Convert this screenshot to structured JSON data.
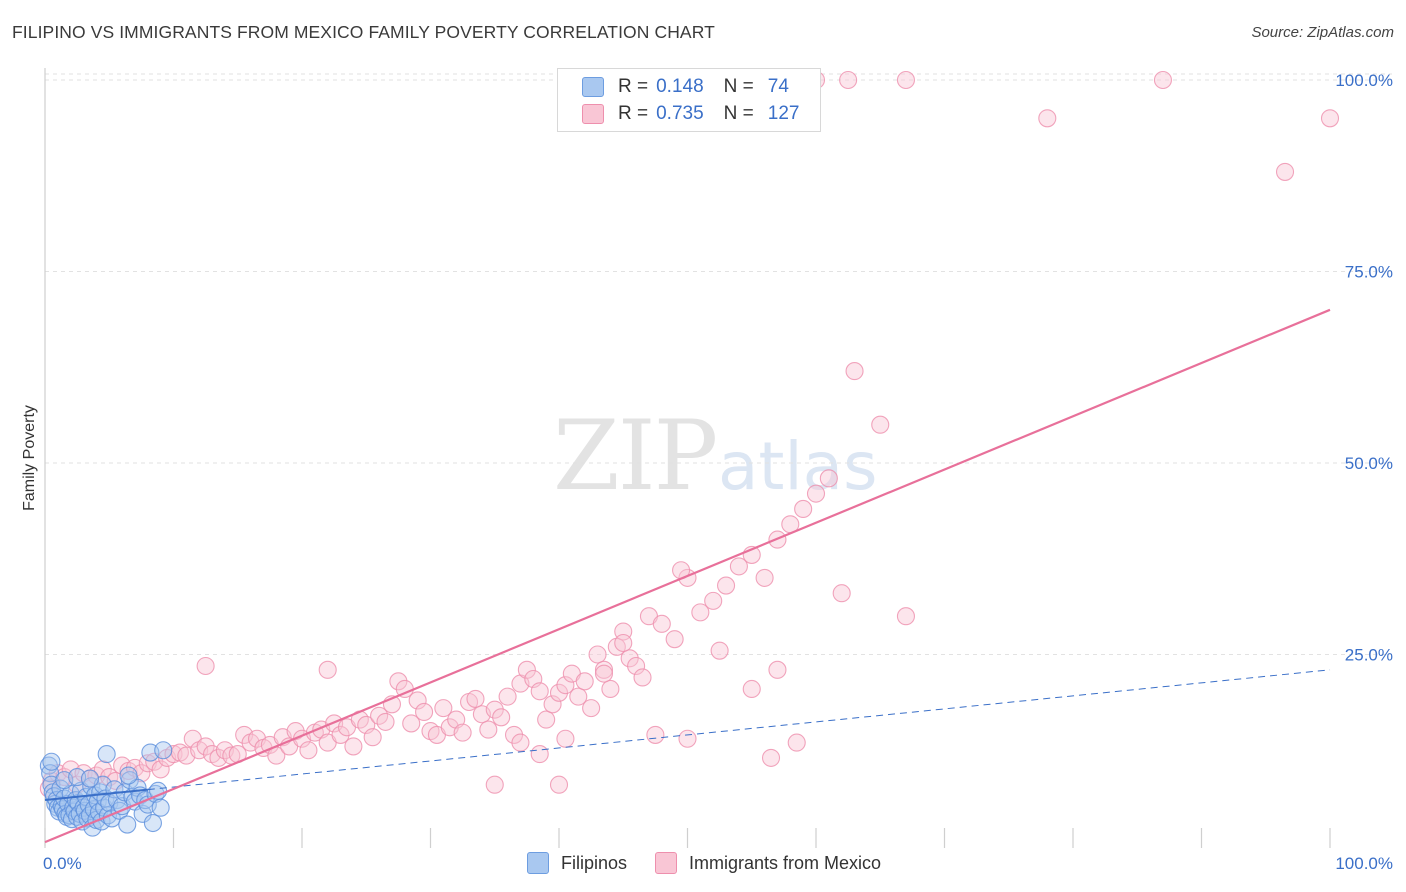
{
  "header": {
    "title": "FILIPINO VS IMMIGRANTS FROM MEXICO FAMILY POVERTY CORRELATION CHART",
    "source": "Source: ZipAtlas.com"
  },
  "watermark": {
    "zip": "ZIP",
    "atlas": "atlas"
  },
  "legend": {
    "rows": [
      {
        "r_label": "R =",
        "r_value": "0.148",
        "n_label": "N =",
        "n_value": "74",
        "color": "#a9c8f0"
      },
      {
        "r_label": "R =",
        "r_value": "0.735",
        "n_label": "N =",
        "n_value": "127",
        "color": "#f7b8cb"
      }
    ],
    "bottom": [
      {
        "label": "Filipinos",
        "color": "#a9c8f0"
      },
      {
        "label": "Immigrants from Mexico",
        "color": "#f7b8cb"
      }
    ]
  },
  "colors": {
    "blue_fill": "#a9c8f0",
    "blue_stroke": "#5b8fdc",
    "blue_line": "#3a6fc8",
    "pink_fill": "#f9c6d5",
    "pink_stroke": "#ee8fad",
    "pink_line": "#e8709a",
    "tick_text": "#3a6fc8"
  },
  "chart_data": {
    "type": "scatter",
    "title": "FILIPINO VS IMMIGRANTS FROM MEXICO FAMILY POVERTY CORRELATION CHART",
    "xlabel": "",
    "ylabel": "Family Poverty",
    "xlim": [
      0,
      100
    ],
    "ylim": [
      0,
      105
    ],
    "x_tick_labels": [
      "0.0%",
      "100.0%"
    ],
    "y_ticks": [
      25,
      50,
      75,
      100
    ],
    "y_tick_labels": [
      "25.0%",
      "50.0%",
      "75.0%",
      "100.0%"
    ],
    "grid": true,
    "series": [
      {
        "name": "Filipinos",
        "r": 0.148,
        "n": 74,
        "trend": {
          "x": [
            0,
            100
          ],
          "y": [
            6.0,
            23.0
          ],
          "style": "dashed"
        },
        "trend_solid_until_x": 8,
        "points": [
          [
            0.3,
            10.5
          ],
          [
            0.4,
            9.5
          ],
          [
            0.5,
            8.0
          ],
          [
            0.6,
            7.0
          ],
          [
            0.7,
            6.5
          ],
          [
            0.8,
            5.5
          ],
          [
            0.9,
            6.0
          ],
          [
            1.0,
            5.0
          ],
          [
            1.1,
            4.5
          ],
          [
            1.2,
            7.5
          ],
          [
            1.3,
            5.2
          ],
          [
            1.4,
            4.8
          ],
          [
            1.5,
            6.2
          ],
          [
            1.6,
            4.2
          ],
          [
            1.7,
            3.8
          ],
          [
            1.8,
            5.5
          ],
          [
            1.9,
            4.0
          ],
          [
            2.0,
            6.8
          ],
          [
            2.1,
            3.5
          ],
          [
            2.2,
            5.0
          ],
          [
            2.3,
            4.5
          ],
          [
            2.4,
            6.0
          ],
          [
            2.5,
            3.8
          ],
          [
            2.6,
            5.6
          ],
          [
            2.7,
            4.2
          ],
          [
            2.8,
            7.2
          ],
          [
            2.9,
            3.2
          ],
          [
            3.0,
            5.0
          ],
          [
            3.1,
            4.6
          ],
          [
            3.2,
            6.4
          ],
          [
            3.3,
            3.6
          ],
          [
            3.4,
            5.4
          ],
          [
            3.5,
            4.0
          ],
          [
            3.6,
            7.8
          ],
          [
            3.7,
            2.4
          ],
          [
            3.8,
            4.8
          ],
          [
            3.9,
            6.6
          ],
          [
            4.0,
            3.4
          ],
          [
            4.1,
            5.8
          ],
          [
            4.2,
            4.4
          ],
          [
            4.3,
            7.0
          ],
          [
            4.4,
            3.2
          ],
          [
            4.5,
            8.0
          ],
          [
            4.6,
            5.0
          ],
          [
            4.7,
            6.2
          ],
          [
            4.8,
            12.0
          ],
          [
            4.9,
            4.0
          ],
          [
            5.0,
            5.6
          ],
          [
            5.2,
            3.6
          ],
          [
            5.4,
            7.4
          ],
          [
            5.6,
            6.0
          ],
          [
            5.8,
            4.6
          ],
          [
            6.0,
            5.2
          ],
          [
            6.2,
            7.0
          ],
          [
            6.4,
            2.8
          ],
          [
            6.6,
            8.6
          ],
          [
            6.8,
            6.4
          ],
          [
            7.0,
            5.8
          ],
          [
            7.2,
            7.6
          ],
          [
            7.4,
            6.6
          ],
          [
            7.6,
            4.2
          ],
          [
            7.8,
            6.0
          ],
          [
            8.0,
            5.4
          ],
          [
            8.2,
            12.2
          ],
          [
            8.4,
            3.0
          ],
          [
            8.6,
            6.8
          ],
          [
            8.8,
            7.2
          ],
          [
            9.0,
            5.0
          ],
          [
            9.2,
            12.5
          ],
          [
            1.5,
            8.6
          ],
          [
            2.5,
            9.0
          ],
          [
            3.5,
            8.8
          ],
          [
            6.5,
            9.2
          ],
          [
            0.5,
            11.0
          ]
        ]
      },
      {
        "name": "Immigrants from Mexico",
        "r": 0.735,
        "n": 127,
        "trend": {
          "x": [
            0,
            100
          ],
          "y": [
            0.5,
            70.0
          ],
          "style": "solid"
        },
        "points": [
          [
            0.5,
            8.5
          ],
          [
            1.0,
            9.5
          ],
          [
            1.5,
            9.0
          ],
          [
            2.0,
            10.0
          ],
          [
            2.5,
            8.0
          ],
          [
            3.0,
            9.5
          ],
          [
            3.5,
            8.8
          ],
          [
            4.0,
            9.2
          ],
          [
            4.5,
            10.0
          ],
          [
            5.0,
            9.0
          ],
          [
            5.5,
            8.5
          ],
          [
            6.0,
            10.5
          ],
          [
            6.5,
            9.8
          ],
          [
            7.0,
            10.2
          ],
          [
            7.5,
            9.5
          ],
          [
            8.0,
            10.8
          ],
          [
            8.5,
            11.0
          ],
          [
            9.0,
            10.0
          ],
          [
            9.5,
            11.5
          ],
          [
            10.0,
            12.0
          ],
          [
            10.5,
            12.2
          ],
          [
            11.0,
            11.8
          ],
          [
            11.5,
            14.0
          ],
          [
            12.0,
            12.5
          ],
          [
            12.5,
            13.0
          ],
          [
            13.0,
            12.0
          ],
          [
            13.5,
            11.5
          ],
          [
            14.0,
            12.5
          ],
          [
            14.5,
            11.8
          ],
          [
            15.0,
            12.0
          ],
          [
            15.5,
            14.5
          ],
          [
            16.0,
            13.5
          ],
          [
            16.5,
            14.0
          ],
          [
            17.0,
            12.8
          ],
          [
            17.5,
            13.2
          ],
          [
            18.0,
            11.8
          ],
          [
            18.5,
            14.2
          ],
          [
            19.0,
            13.0
          ],
          [
            19.5,
            15.0
          ],
          [
            20.0,
            14.0
          ],
          [
            20.5,
            12.5
          ],
          [
            21.0,
            14.8
          ],
          [
            21.5,
            15.2
          ],
          [
            22.0,
            13.5
          ],
          [
            22.5,
            16.0
          ],
          [
            23.0,
            14.5
          ],
          [
            23.5,
            15.5
          ],
          [
            24.0,
            13.0
          ],
          [
            24.5,
            16.5
          ],
          [
            25.0,
            15.8
          ],
          [
            25.5,
            14.2
          ],
          [
            26.0,
            17.0
          ],
          [
            26.5,
            16.2
          ],
          [
            27.0,
            18.5
          ],
          [
            27.5,
            21.5
          ],
          [
            28.0,
            20.5
          ],
          [
            28.5,
            16.0
          ],
          [
            29.0,
            19.0
          ],
          [
            29.5,
            17.5
          ],
          [
            30.0,
            15.0
          ],
          [
            30.5,
            14.5
          ],
          [
            31.0,
            18.0
          ],
          [
            31.5,
            15.5
          ],
          [
            32.0,
            16.5
          ],
          [
            32.5,
            14.8
          ],
          [
            33.0,
            18.8
          ],
          [
            33.5,
            19.2
          ],
          [
            34.0,
            17.2
          ],
          [
            34.5,
            15.2
          ],
          [
            35.0,
            17.8
          ],
          [
            35.5,
            16.8
          ],
          [
            36.0,
            19.5
          ],
          [
            36.5,
            14.5
          ],
          [
            37.0,
            21.2
          ],
          [
            37.5,
            23.0
          ],
          [
            38.0,
            21.8
          ],
          [
            38.5,
            20.2
          ],
          [
            39.0,
            16.5
          ],
          [
            39.5,
            18.5
          ],
          [
            40.0,
            20.0
          ],
          [
            40.5,
            21.0
          ],
          [
            41.0,
            22.5
          ],
          [
            41.5,
            19.5
          ],
          [
            42.0,
            21.5
          ],
          [
            42.5,
            18.0
          ],
          [
            43.0,
            25.0
          ],
          [
            43.5,
            23.0
          ],
          [
            44.0,
            20.5
          ],
          [
            44.5,
            26.0
          ],
          [
            45.0,
            28.0
          ],
          [
            45.5,
            24.5
          ],
          [
            46.0,
            23.5
          ],
          [
            46.5,
            22.0
          ],
          [
            47.0,
            30.0
          ],
          [
            48.0,
            29.0
          ],
          [
            49.0,
            27.0
          ],
          [
            50.0,
            35.0
          ],
          [
            51.0,
            30.5
          ],
          [
            52.0,
            32.0
          ],
          [
            53.0,
            34.0
          ],
          [
            54.0,
            36.5
          ],
          [
            55.0,
            38.0
          ],
          [
            56.0,
            35.0
          ],
          [
            57.0,
            40.0
          ],
          [
            58.0,
            42.0
          ],
          [
            59.0,
            44.0
          ],
          [
            60.0,
            46.0
          ],
          [
            61.0,
            48.0
          ],
          [
            62.0,
            33.0
          ],
          [
            63.0,
            62.0
          ],
          [
            58.5,
            13.5
          ],
          [
            56.5,
            11.5
          ],
          [
            50.0,
            14.0
          ],
          [
            47.5,
            14.5
          ],
          [
            43.5,
            22.5
          ],
          [
            40.5,
            14.0
          ],
          [
            38.5,
            12.0
          ],
          [
            37.0,
            13.5
          ],
          [
            35.0,
            8.0
          ],
          [
            40.0,
            8.0
          ],
          [
            67.0,
            30.0
          ],
          [
            57.0,
            23.0
          ],
          [
            55.0,
            20.5
          ],
          [
            52.5,
            25.5
          ],
          [
            60.0,
            100.0
          ],
          [
            62.5,
            100.0
          ],
          [
            67.0,
            100.0
          ],
          [
            78.0,
            95.0
          ],
          [
            87.0,
            100.0
          ],
          [
            96.5,
            88.0
          ],
          [
            100.0,
            95.0
          ],
          [
            22.0,
            23.0
          ],
          [
            12.5,
            23.5
          ],
          [
            45.0,
            26.5
          ],
          [
            65.0,
            55.0
          ],
          [
            49.5,
            36.0
          ],
          [
            0.3,
            7.5
          ]
        ]
      }
    ]
  }
}
